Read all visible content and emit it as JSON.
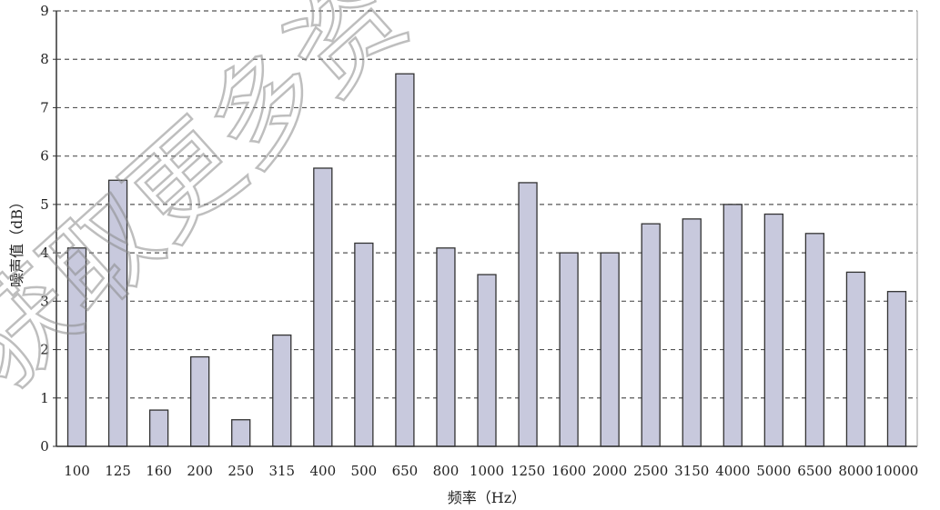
{
  "chart_data": {
    "type": "bar",
    "title": "",
    "xlabel": "频率（Hz）",
    "ylabel": "噪声值（dB）",
    "ylim": [
      0,
      9
    ],
    "yticks": [
      0,
      1,
      2,
      3,
      4,
      5,
      6,
      7,
      8,
      9
    ],
    "grid": "horizontal dashed",
    "bar_color": "#c8c9dd",
    "bar_edge_color": "#333333",
    "categories": [
      "100",
      "125",
      "160",
      "200",
      "250",
      "315",
      "400",
      "500",
      "650",
      "800",
      "1000",
      "1250",
      "1600",
      "2000",
      "2500",
      "3150",
      "4000",
      "5000",
      "6500",
      "8000",
      "10000"
    ],
    "values": [
      4.1,
      5.5,
      0.75,
      1.85,
      0.55,
      2.3,
      5.75,
      4.2,
      7.7,
      4.1,
      3.55,
      5.45,
      4.0,
      4.0,
      4.6,
      4.7,
      5.0,
      4.8,
      4.4,
      3.6,
      3.2
    ]
  },
  "watermark": {
    "text": "获取更多资"
  }
}
